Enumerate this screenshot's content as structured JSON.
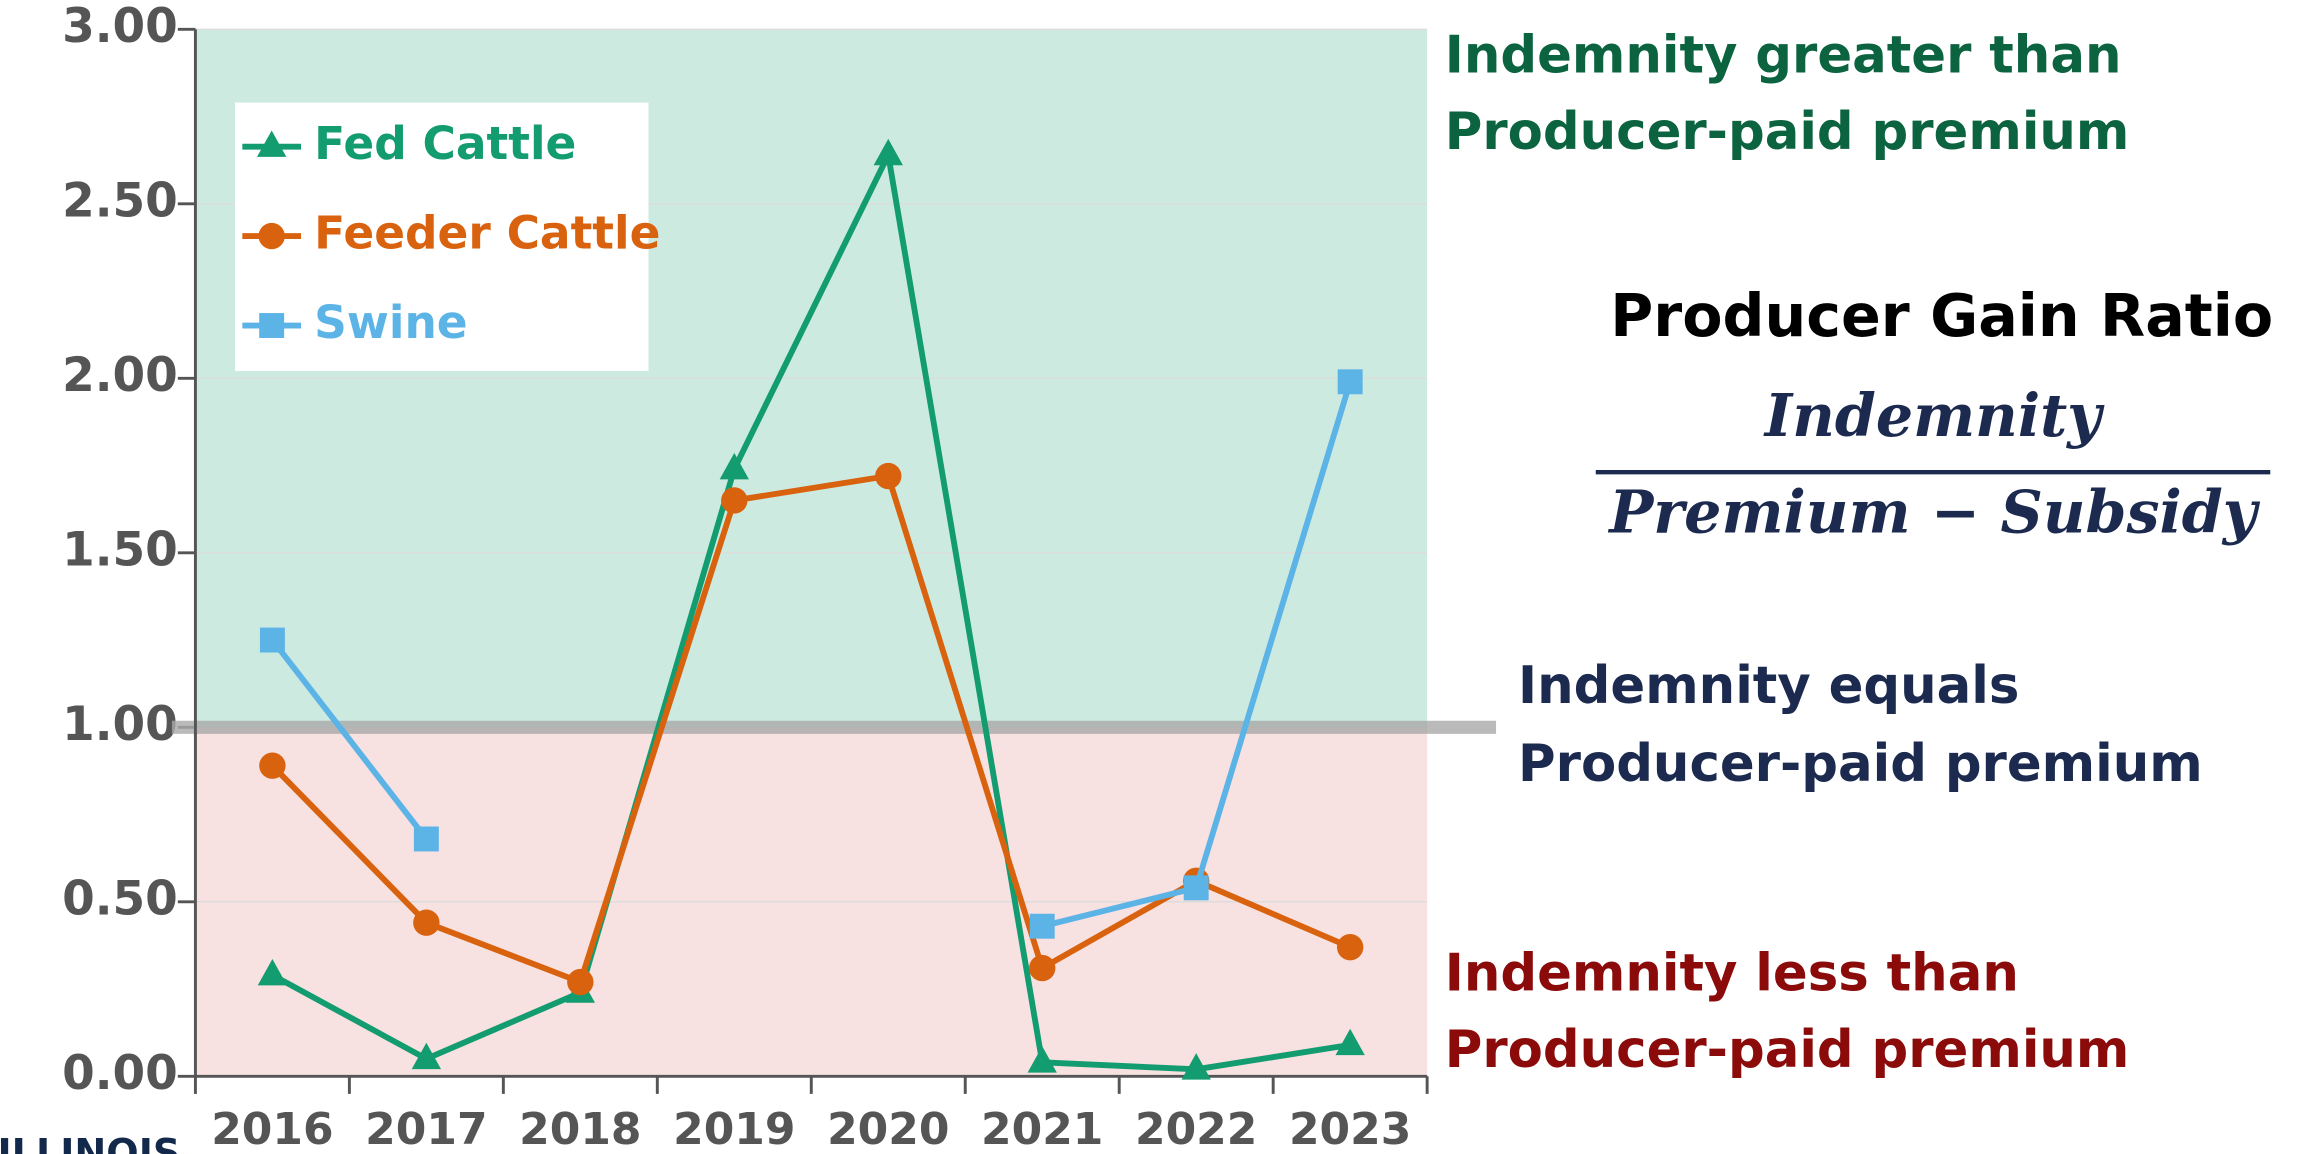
{
  "chart_data": {
    "type": "line",
    "categories": [
      "2016",
      "2017",
      "2018",
      "2019",
      "2020",
      "2021",
      "2022",
      "2023"
    ],
    "series": [
      {
        "name": "Fed Cattle",
        "color": "#129c6f",
        "marker": "triangle",
        "values": [
          0.29,
          0.05,
          0.24,
          1.74,
          2.64,
          0.04,
          0.02,
          0.09
        ]
      },
      {
        "name": "Feeder Cattle",
        "color": "#d9620e",
        "marker": "circle",
        "values": [
          0.89,
          0.44,
          0.27,
          1.65,
          1.72,
          0.31,
          0.56,
          0.37
        ]
      },
      {
        "name": "Swine",
        "color": "#5cb3e6",
        "marker": "square",
        "values": [
          1.25,
          0.68,
          null,
          null,
          null,
          0.43,
          0.54,
          1.99
        ]
      }
    ],
    "ylim": [
      0,
      3
    ],
    "yticks": [
      {
        "value": 0,
        "label": "0.00"
      },
      {
        "value": 0.5,
        "label": "0.50"
      },
      {
        "value": 1,
        "label": "1.00"
      },
      {
        "value": 1.5,
        "label": "1.50"
      },
      {
        "value": 2,
        "label": "2.00"
      },
      {
        "value": 2.5,
        "label": "2.50"
      },
      {
        "value": 3,
        "label": "3.00"
      }
    ],
    "reference_line": 1,
    "legend": "upper left",
    "annotations": {
      "above": [
        "Indemnity greater than",
        "Producer-paid premium"
      ],
      "equal": [
        "Indemnity equals",
        "Producer-paid premium"
      ],
      "below": [
        "Indemnity less than",
        "Producer-paid premium"
      ],
      "formula_title": "Producer Gain Ratio",
      "numerator": "Indemnity",
      "denominator": "Premium − Subsidy"
    },
    "logo": "ILLINOIS"
  }
}
